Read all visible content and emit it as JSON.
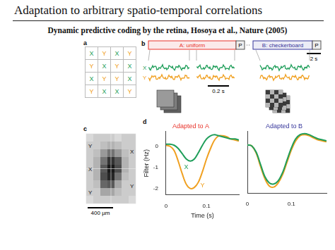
{
  "header": {
    "title": "Adaptation to arbitrary spatio-temporal correlations",
    "subtitle": "Dynamic predictive coding by the retina, Hosoya et al., Nature (2005)"
  },
  "panels": {
    "a": {
      "label": "a",
      "grid": [
        [
          "X",
          "Y",
          "X",
          "Y"
        ],
        [
          "Y",
          "X",
          "Y",
          "X"
        ],
        [
          "X",
          "Y",
          "Y",
          "X"
        ],
        [
          "Y",
          "X",
          "X",
          "Y"
        ]
      ],
      "colors": {
        "X": "#1f9e5a",
        "Y": "#f0a020"
      }
    },
    "b": {
      "label": "b",
      "stimulus_A": "A: uniform",
      "stimulus_B": "B: checkerboard",
      "probe": "P",
      "series_labels": [
        "X",
        "Y"
      ],
      "scale_short": "0.2 s",
      "scale_long": "2 s",
      "color_A": "#e8332a",
      "color_B": "#34349a"
    },
    "c": {
      "label": "c",
      "cells": [
        [
          0.85,
          0.8,
          0.8,
          0.8,
          0.85,
          0.8,
          0.8
        ],
        [
          0.8,
          0.8,
          0.75,
          0.7,
          0.75,
          0.8,
          0.8
        ],
        [
          0.8,
          0.75,
          0.6,
          0.45,
          0.6,
          0.75,
          0.8
        ],
        [
          0.8,
          0.7,
          0.45,
          0.2,
          0.35,
          0.7,
          0.8
        ],
        [
          0.8,
          0.7,
          0.35,
          0.1,
          0.3,
          0.7,
          0.8
        ],
        [
          0.8,
          0.7,
          0.3,
          0.15,
          0.45,
          0.75,
          0.8
        ],
        [
          0.8,
          0.75,
          0.4,
          0.35,
          0.65,
          0.8,
          0.8
        ],
        [
          0.8,
          0.8,
          0.65,
          0.65,
          0.75,
          0.8,
          0.8
        ],
        [
          0.85,
          0.8,
          0.8,
          0.8,
          0.8,
          0.8,
          0.85
        ]
      ],
      "markers_left": [
        "Y",
        "X",
        "Y"
      ],
      "markers_right": [
        "X",
        "Y"
      ],
      "scale_bar": "400 µm"
    },
    "d": {
      "label": "d"
    }
  },
  "chart_data": [
    {
      "type": "line",
      "title": {
        "text": "Adapted to A",
        "color": "#e8332a"
      },
      "x": [
        0,
        0.01,
        0.02,
        0.03,
        0.04,
        0.05,
        0.06,
        0.07,
        0.08,
        0.09,
        0.1,
        0.11,
        0.12,
        0.13,
        0.14,
        0.15,
        0.16,
        0.17,
        0.18
      ],
      "series": [
        {
          "name": "X",
          "color": "#1f9e5a",
          "values": [
            0.1,
            0.1,
            0.05,
            -0.1,
            -0.35,
            -0.6,
            -0.7,
            -0.6,
            -0.3,
            0.05,
            0.35,
            0.5,
            0.55,
            0.5,
            0.45,
            0.4,
            0.35,
            0.35,
            0.3
          ]
        },
        {
          "name": "Y",
          "color": "#f0a020",
          "values": [
            0.05,
            0,
            -0.2,
            -0.7,
            -1.3,
            -1.8,
            -2.0,
            -1.95,
            -1.7,
            -1.2,
            -0.6,
            -0.1,
            0.3,
            0.5,
            0.5,
            0.45,
            0.35,
            0.3,
            0.25
          ]
        }
      ],
      "xlim": [
        0,
        0.18
      ],
      "xticks": [
        0,
        0.1
      ],
      "ylim": [
        -2.3,
        0.7
      ],
      "yticks": [
        -2,
        -1,
        0
      ],
      "xlabel": "Time (s)",
      "ylabel": "Filter (Hz)",
      "grid": false,
      "tick_labels": true,
      "annotations": [
        {
          "text": "X",
          "x": 0.05,
          "y": -1.0,
          "color": "#1f9e5a"
        },
        {
          "text": "Y",
          "x": 0.09,
          "y": -1.85,
          "color": "#f0a020"
        }
      ]
    },
    {
      "type": "line",
      "title": {
        "text": "Adapted to B",
        "color": "#34349a"
      },
      "x": [
        0,
        0.01,
        0.02,
        0.03,
        0.04,
        0.05,
        0.06,
        0.07,
        0.08,
        0.09,
        0.1,
        0.11,
        0.12,
        0.13,
        0.14,
        0.15,
        0.16,
        0.17,
        0.18
      ],
      "series": [
        {
          "name": "X",
          "color": "#1f9e5a",
          "values": [
            0.05,
            0,
            -0.3,
            -0.9,
            -1.5,
            -1.8,
            -1.85,
            -1.7,
            -1.3,
            -0.7,
            -0.1,
            0.35,
            0.55,
            0.6,
            0.55,
            0.45,
            0.35,
            0.3,
            0.25
          ]
        },
        {
          "name": "Y",
          "color": "#f0a020",
          "values": [
            0.05,
            0,
            -0.35,
            -1.0,
            -1.6,
            -1.95,
            -2.0,
            -1.8,
            -1.4,
            -0.8,
            -0.2,
            0.25,
            0.5,
            0.55,
            0.5,
            0.4,
            0.3,
            0.25,
            0.2
          ]
        }
      ],
      "xlim": [
        0,
        0.18
      ],
      "xticks": [
        0,
        0.1
      ],
      "ylim": [
        -2.3,
        0.7
      ],
      "yticks": [
        -2,
        -1,
        0
      ],
      "grid": false,
      "tick_labels": "x"
    }
  ]
}
